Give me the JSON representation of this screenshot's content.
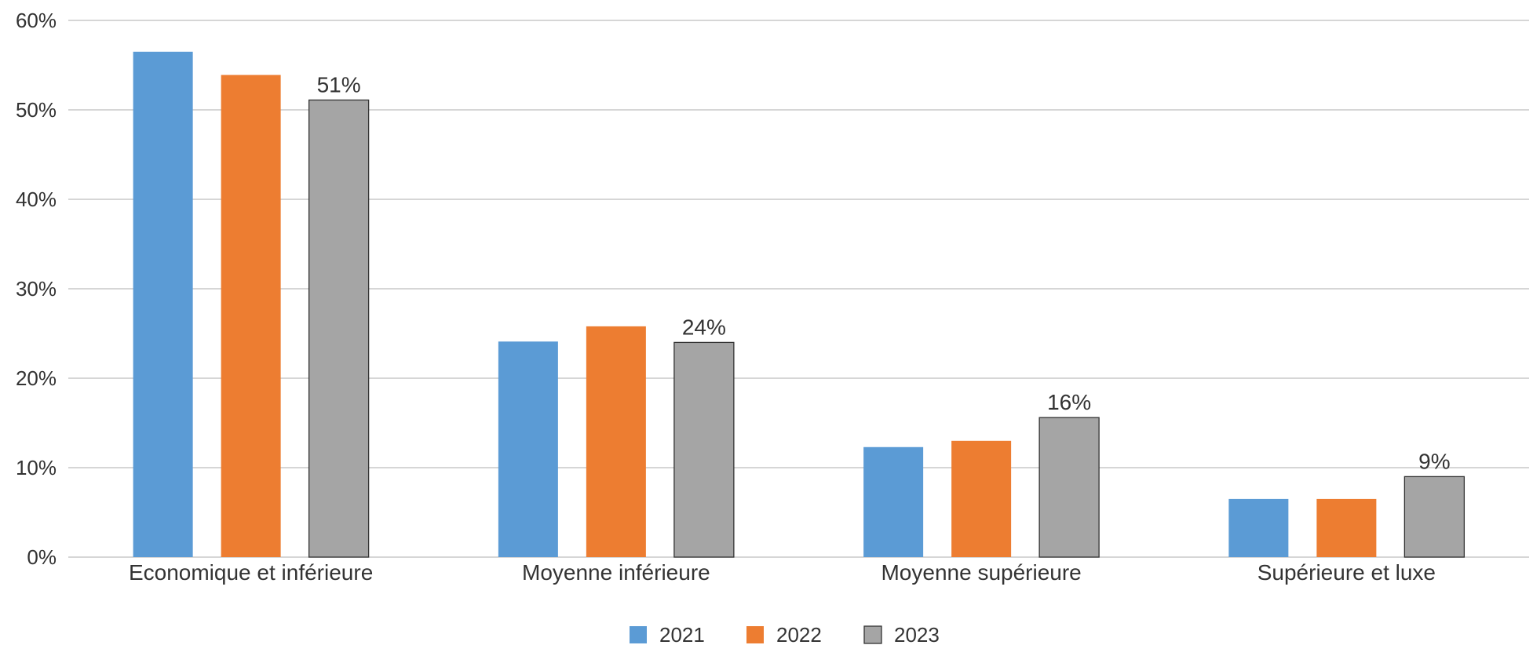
{
  "chart_data": {
    "type": "bar",
    "categories": [
      "Economique et inférieure",
      "Moyenne inférieure",
      "Moyenne supérieure",
      "Supérieure et luxe"
    ],
    "series": [
      {
        "name": "2021",
        "color": "#5b9bd5",
        "values": [
          56.5,
          24.1,
          12.3,
          6.5
        ]
      },
      {
        "name": "2022",
        "color": "#ed7d31",
        "values": [
          53.9,
          25.8,
          13.0,
          6.5
        ]
      },
      {
        "name": "2023",
        "color": "#a5a5a5",
        "values": [
          51.1,
          24.0,
          15.6,
          9.0
        ],
        "labels": [
          "51%",
          "24%",
          "16%",
          "9%"
        ]
      }
    ],
    "y_ticks": [
      "0%",
      "10%",
      "20%",
      "30%",
      "40%",
      "50%",
      "60%"
    ],
    "ylim": [
      0,
      60
    ],
    "grid": true,
    "legend_position": "bottom-center"
  }
}
